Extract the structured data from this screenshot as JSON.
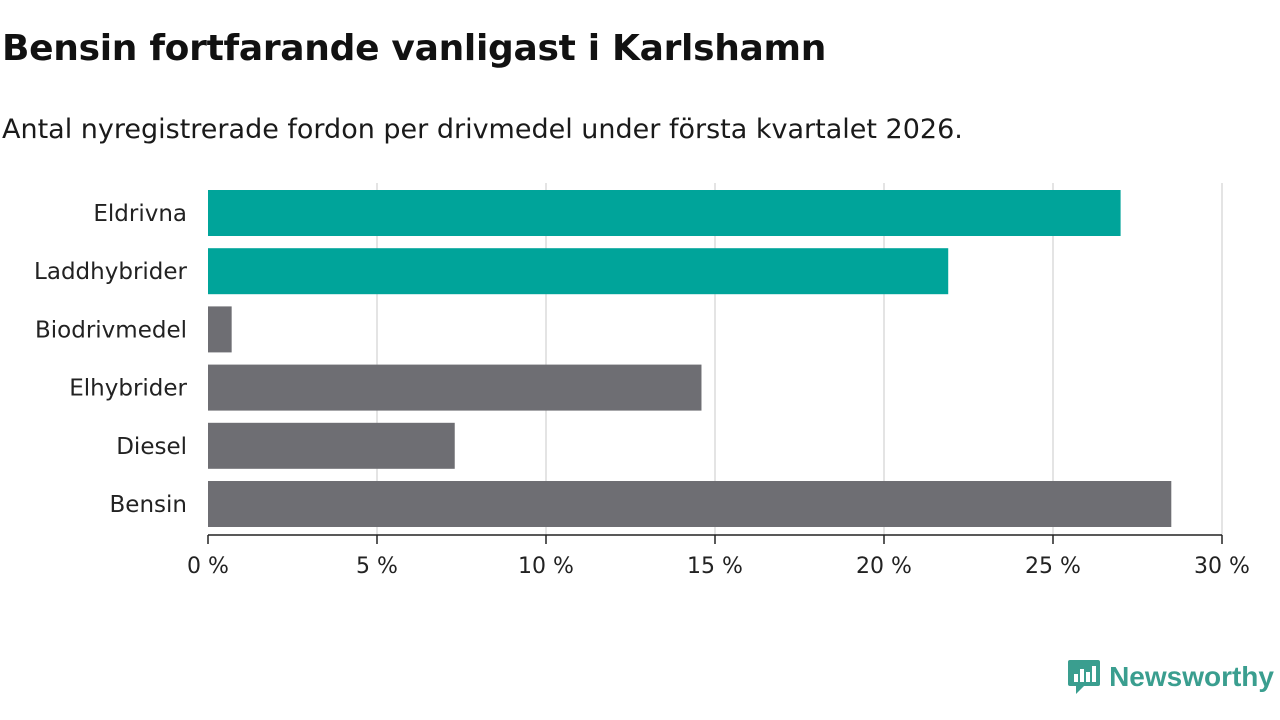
{
  "header": {
    "title": "Bensin fortfarande vanligast i Karlshamn",
    "subtitle": "Antal nyregistrerade fordon per drivmedel under första kvartalet 2026."
  },
  "brand": {
    "name": "Newsworthy",
    "icon": "newsworthy-logo-icon",
    "color": "#3a9e8f"
  },
  "chart_data": {
    "type": "bar",
    "orientation": "horizontal",
    "categories": [
      "Eldrivna",
      "Laddhybrider",
      "Biodrivmedel",
      "Elhybrider",
      "Diesel",
      "Bensin"
    ],
    "values": [
      27.0,
      21.9,
      0.7,
      14.6,
      7.3,
      28.5
    ],
    "colors": [
      "#00a49a",
      "#00a49a",
      "#6e6e73",
      "#6e6e73",
      "#6e6e73",
      "#6e6e73"
    ],
    "xlim": [
      0,
      30
    ],
    "xticks": [
      0,
      5,
      10,
      15,
      20,
      25,
      30
    ],
    "tick_labels": [
      "0 %",
      "5 %",
      "10 %",
      "15 %",
      "20 %",
      "25 %",
      "30 %"
    ],
    "grid": true,
    "xlabel": "",
    "ylabel": ""
  }
}
